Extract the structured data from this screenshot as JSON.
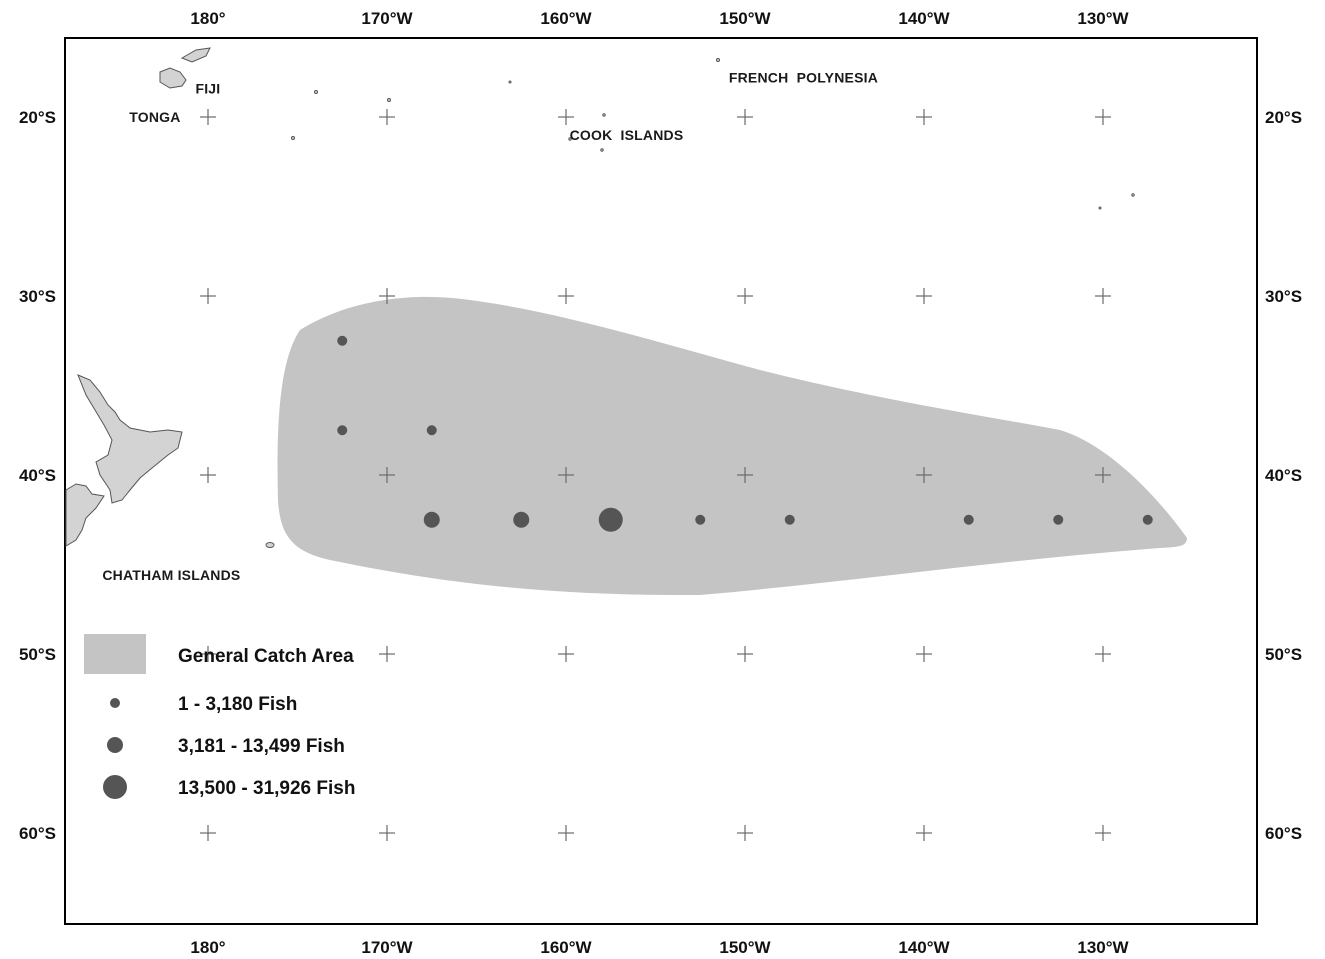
{
  "map": {
    "lon_ticks": [
      {
        "lon": 180,
        "label": "180°"
      },
      {
        "lon": 190,
        "label": "170°W"
      },
      {
        "lon": 200,
        "label": "160°W"
      },
      {
        "lon": 210,
        "label": "150°W"
      },
      {
        "lon": 220,
        "label": "140°W"
      },
      {
        "lon": 230,
        "label": "130°W"
      }
    ],
    "lat_ticks": [
      {
        "lat": -20,
        "label": "20°S"
      },
      {
        "lat": -30,
        "label": "30°S"
      },
      {
        "lat": -40,
        "label": "40°S"
      },
      {
        "lat": -50,
        "label": "50°S"
      },
      {
        "lat": -60,
        "label": "60°S"
      }
    ],
    "places": [
      {
        "name": "FIJI",
        "lon": 179.3,
        "lat": -18.4
      },
      {
        "name": "TONGA",
        "lon": 175.6,
        "lat": -20
      },
      {
        "name": "COOK  ISLANDS",
        "lon": 200.2,
        "lat": -21
      },
      {
        "name": "FRENCH  POLYNESIA",
        "lon": 209.1,
        "lat": -17.8
      },
      {
        "name": "CHATHAM ISLANDS",
        "lon": 174.1,
        "lat": -45.6
      }
    ],
    "colors": {
      "catch_area": "#c4c4c4",
      "land": "#d3d3d3",
      "marker": "#555555",
      "frame": "#000000"
    },
    "catch_points": [
      {
        "lon": 187.5,
        "lat": -32.5,
        "class": 1
      },
      {
        "lon": 187.5,
        "lat": -37.5,
        "class": 1
      },
      {
        "lon": 192.5,
        "lat": -37.5,
        "class": 1
      },
      {
        "lon": 192.5,
        "lat": -42.5,
        "class": 2
      },
      {
        "lon": 197.5,
        "lat": -42.5,
        "class": 2
      },
      {
        "lon": 202.5,
        "lat": -42.5,
        "class": 3
      },
      {
        "lon": 207.5,
        "lat": -42.5,
        "class": 1
      },
      {
        "lon": 212.5,
        "lat": -42.5,
        "class": 1
      },
      {
        "lon": 222.5,
        "lat": -42.5,
        "class": 1
      },
      {
        "lon": 227.5,
        "lat": -42.5,
        "class": 1
      },
      {
        "lon": 232.5,
        "lat": -42.5,
        "class": 1
      }
    ]
  },
  "legend": {
    "area_label": "General Catch Area",
    "size_classes": [
      {
        "class": 1,
        "label": "1 - 3,180 Fish"
      },
      {
        "class": 2,
        "label": "3,181 - 13,499 Fish"
      },
      {
        "class": 3,
        "label": "13,500 - 31,926 Fish"
      }
    ]
  }
}
